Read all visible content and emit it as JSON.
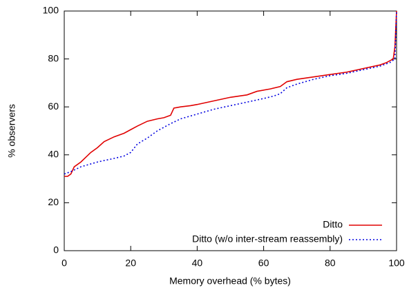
{
  "chart_data": {
    "type": "line",
    "xlabel": "Memory overhead (% bytes)",
    "ylabel": "% observers",
    "xlim": [
      0,
      100
    ],
    "ylim": [
      0,
      100
    ],
    "xticks": [
      0,
      20,
      40,
      60,
      80,
      100
    ],
    "yticks": [
      0,
      20,
      40,
      60,
      80,
      100
    ],
    "legend": "bottom-right",
    "series": [
      {
        "name": "Ditto",
        "color": "#e00000",
        "dash": "solid",
        "x": [
          0,
          1,
          2,
          3,
          5,
          8,
          10,
          12,
          15,
          18,
          20,
          22,
          25,
          28,
          30,
          32,
          33,
          35,
          38,
          40,
          45,
          50,
          55,
          58,
          62,
          65,
          67,
          70,
          75,
          80,
          85,
          90,
          95,
          97,
          99,
          99.5,
          100
        ],
        "values": [
          31,
          31,
          32,
          35,
          37,
          41,
          43,
          45.5,
          47.5,
          49,
          50.5,
          52,
          54,
          55,
          55.5,
          56.5,
          59.5,
          60,
          60.5,
          61,
          62.5,
          64,
          65,
          66.5,
          67.5,
          68.5,
          70.5,
          71.5,
          72.5,
          73.5,
          74.5,
          76,
          77.5,
          78.5,
          80,
          85,
          100
        ]
      },
      {
        "name": "Ditto (w/o inter-stream reassembly)",
        "color": "#0000e0",
        "dash": "dotted",
        "x": [
          0,
          2,
          5,
          10,
          15,
          18,
          20,
          22,
          25,
          28,
          30,
          32,
          35,
          40,
          45,
          50,
          55,
          60,
          63,
          65,
          67,
          70,
          75,
          80,
          85,
          90,
          95,
          98,
          99.5,
          100
        ],
        "values": [
          32,
          33,
          35,
          37,
          38.5,
          39.5,
          41,
          44.5,
          47,
          50,
          51.5,
          53,
          55,
          57,
          59,
          60.5,
          62,
          63.5,
          64.5,
          65.5,
          68,
          69.5,
          71.5,
          73,
          74,
          75.5,
          77,
          78.5,
          80,
          100
        ]
      }
    ]
  }
}
